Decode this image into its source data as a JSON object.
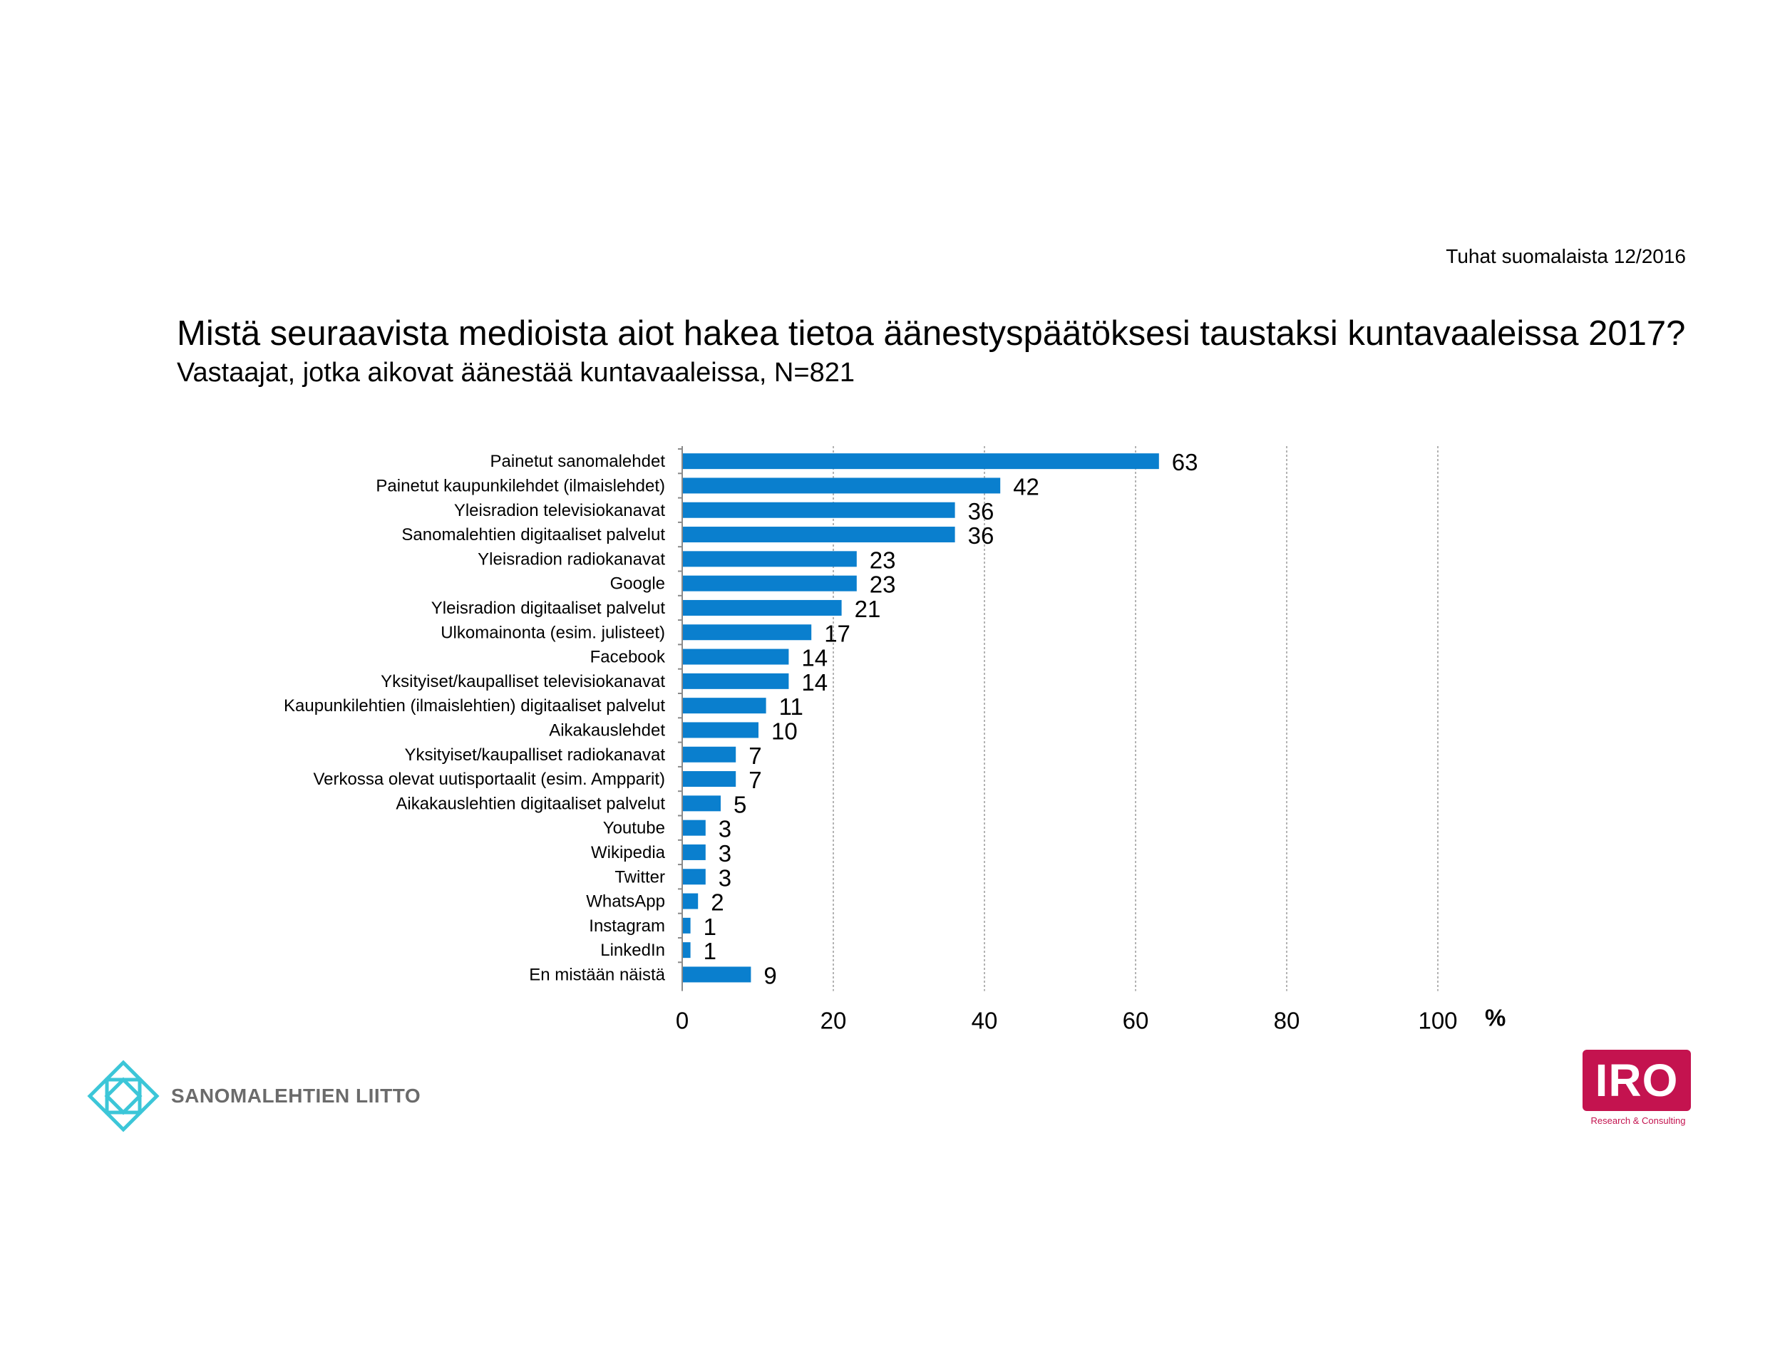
{
  "source": "Tuhat suomalaista 12/2016",
  "title": "Mistä seuraavista medioista aiot hakea tietoa äänestyspäätöksesi taustaksi kuntavaaleissa 2017?",
  "subtitle": "Vastaajat, jotka aikovat äänestää kuntavaaleissa, N=821",
  "chart_data": {
    "type": "bar",
    "orientation": "horizontal",
    "categories": [
      "Painetut sanomalehdet",
      "Painetut kaupunkilehdet (ilmaislehdet)",
      "Yleisradion televisiokanavat",
      "Sanomalehtien digitaaliset palvelut",
      "Yleisradion radiokanavat",
      "Google",
      "Yleisradion digitaaliset palvelut",
      "Ulkomainonta (esim. julisteet)",
      "Facebook",
      "Yksityiset/kaupalliset televisiokanavat",
      "Kaupunkilehtien (ilmaislehtien) digitaaliset palvelut",
      "Aikakauslehdet",
      "Yksityiset/kaupalliset radiokanavat",
      "Verkossa olevat uutisportaalit (esim. Ampparit)",
      "Aikakauslehtien digitaaliset palvelut",
      "Youtube",
      "Wikipedia",
      "Twitter",
      "WhatsApp",
      "Instagram",
      "LinkedIn",
      "En mistään näistä"
    ],
    "values": [
      63,
      42,
      36,
      36,
      23,
      23,
      21,
      17,
      14,
      14,
      11,
      10,
      7,
      7,
      5,
      3,
      3,
      3,
      2,
      1,
      1,
      9
    ],
    "xlim": [
      0,
      100
    ],
    "ticks": [
      "0",
      "20",
      "40",
      "60",
      "80",
      "100"
    ],
    "unit_label": "%",
    "grid": "vertical dashed",
    "bar_color": "#0a7fce"
  },
  "logos": {
    "left_name": "SANOMALEHTIEN LIITTO",
    "right_name": "IRO",
    "right_sub": "Research & Consulting"
  }
}
